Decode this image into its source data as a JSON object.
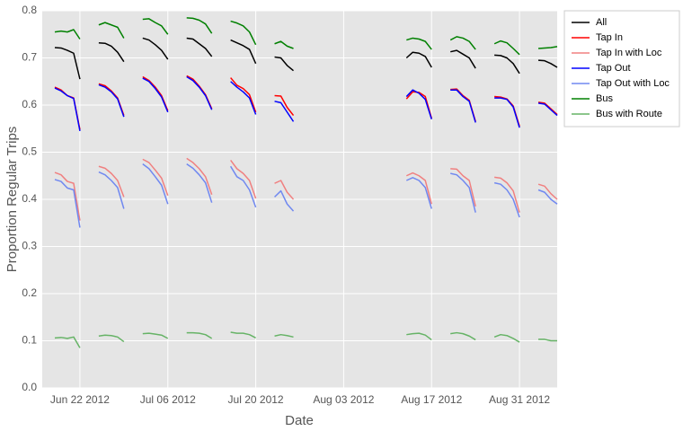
{
  "chart_data": {
    "type": "line",
    "xlabel": "Date",
    "ylabel": "Proportion Regular Trips",
    "x": [
      "2012-06-18",
      "2012-06-19",
      "2012-06-20",
      "2012-06-21",
      "2012-06-22",
      "2012-06-23",
      "2012-06-25",
      "2012-06-26",
      "2012-06-27",
      "2012-06-28",
      "2012-06-29",
      "2012-06-30",
      "2012-07-02",
      "2012-07-03",
      "2012-07-04",
      "2012-07-05",
      "2012-07-06",
      "2012-07-07",
      "2012-07-09",
      "2012-07-10",
      "2012-07-11",
      "2012-07-12",
      "2012-07-13",
      "2012-07-14",
      "2012-07-16",
      "2012-07-17",
      "2012-07-18",
      "2012-07-19",
      "2012-07-20",
      "2012-07-21",
      "2012-07-23",
      "2012-07-24",
      "2012-07-25",
      "2012-07-26",
      "2012-07-27",
      "2012-08-13",
      "2012-08-14",
      "2012-08-15",
      "2012-08-16",
      "2012-08-17",
      "2012-08-18",
      "2012-08-20",
      "2012-08-21",
      "2012-08-22",
      "2012-08-23",
      "2012-08-24",
      "2012-08-25",
      "2012-08-27",
      "2012-08-28",
      "2012-08-29",
      "2012-08-30",
      "2012-08-31",
      "2012-09-01",
      "2012-09-03",
      "2012-09-04",
      "2012-09-05",
      "2012-09-06"
    ],
    "xlim": [
      "2012-06-16",
      "2012-09-06"
    ],
    "xticks": [
      {
        "value": "2012-06-22",
        "label": "Jun 22 2012"
      },
      {
        "value": "2012-07-06",
        "label": "Jul 06 2012"
      },
      {
        "value": "2012-07-20",
        "label": "Jul 20 2012"
      },
      {
        "value": "2012-08-03",
        "label": "Aug 03 2012"
      },
      {
        "value": "2012-08-17",
        "label": "Aug 17 2012"
      },
      {
        "value": "2012-08-31",
        "label": "Aug 31 2012"
      }
    ],
    "ylim": [
      0,
      0.8
    ],
    "yticks": [
      {
        "value": 0,
        "label": "0.0"
      },
      0.1,
      0.2,
      0.3,
      0.4,
      0.5,
      0.6,
      0.7,
      0.8
    ],
    "grid": true,
    "legend": "outside-right-top",
    "series": [
      {
        "name": "All",
        "color": "#000000",
        "values": [
          0.722,
          0.721,
          0.716,
          0.71,
          0.655,
          null,
          0.732,
          0.731,
          0.725,
          0.712,
          0.692,
          null,
          0.742,
          0.738,
          0.728,
          0.716,
          0.697,
          null,
          0.742,
          0.74,
          0.73,
          0.72,
          0.703,
          null,
          0.738,
          0.732,
          0.726,
          0.718,
          0.688,
          null,
          0.702,
          0.7,
          0.684,
          0.673,
          null,
          0.7,
          0.712,
          0.71,
          0.703,
          0.68,
          null,
          0.713,
          0.716,
          0.708,
          0.7,
          0.678,
          null,
          0.706,
          0.705,
          0.7,
          0.688,
          0.667,
          null,
          0.695,
          0.694,
          0.688,
          0.68
        ]
      },
      {
        "name": "Tap In",
        "color": "#ff0000",
        "values": [
          0.638,
          0.632,
          0.62,
          0.615,
          0.548,
          null,
          0.645,
          0.641,
          0.63,
          0.615,
          0.578,
          null,
          0.66,
          0.652,
          0.638,
          0.62,
          0.588,
          null,
          0.662,
          0.655,
          0.64,
          0.622,
          0.592,
          null,
          0.658,
          0.642,
          0.635,
          0.622,
          0.585,
          null,
          0.62,
          0.619,
          0.595,
          0.578,
          null,
          0.613,
          0.628,
          0.627,
          0.618,
          0.572,
          null,
          0.633,
          0.634,
          0.62,
          0.61,
          0.565,
          null,
          0.618,
          0.617,
          0.613,
          0.598,
          0.555,
          null,
          0.606,
          0.604,
          0.592,
          0.58
        ]
      },
      {
        "name": "Tap In with Loc",
        "color": "#f08080",
        "values": [
          0.457,
          0.452,
          0.438,
          0.434,
          0.355,
          null,
          0.47,
          0.466,
          0.455,
          0.44,
          0.405,
          null,
          0.485,
          0.478,
          0.462,
          0.445,
          0.408,
          null,
          0.487,
          0.478,
          0.465,
          0.448,
          0.41,
          null,
          0.483,
          0.465,
          0.455,
          0.44,
          0.402,
          null,
          0.434,
          0.44,
          0.415,
          0.4,
          null,
          0.45,
          0.456,
          0.45,
          0.44,
          0.39,
          null,
          0.465,
          0.464,
          0.45,
          0.44,
          0.385,
          null,
          0.447,
          0.445,
          0.435,
          0.418,
          0.372,
          null,
          0.432,
          0.428,
          0.412,
          0.4
        ]
      },
      {
        "name": "Tap Out",
        "color": "#0000ff",
        "values": [
          0.636,
          0.63,
          0.62,
          0.614,
          0.545,
          null,
          0.643,
          0.638,
          0.628,
          0.613,
          0.575,
          null,
          0.657,
          0.65,
          0.635,
          0.617,
          0.585,
          null,
          0.66,
          0.652,
          0.638,
          0.62,
          0.59,
          null,
          0.65,
          0.638,
          0.628,
          0.615,
          0.58,
          null,
          0.608,
          0.605,
          0.585,
          0.565,
          null,
          0.618,
          0.632,
          0.625,
          0.612,
          0.57,
          null,
          0.632,
          0.632,
          0.618,
          0.608,
          0.563,
          null,
          0.615,
          0.615,
          0.612,
          0.596,
          0.552,
          null,
          0.604,
          0.602,
          0.59,
          0.578
        ]
      },
      {
        "name": "Tap Out with Loc",
        "color": "#7088f0",
        "values": [
          0.442,
          0.438,
          0.424,
          0.42,
          0.34,
          null,
          0.458,
          0.452,
          0.44,
          0.425,
          0.38,
          null,
          0.475,
          0.465,
          0.448,
          0.43,
          0.39,
          null,
          0.475,
          0.466,
          0.452,
          0.435,
          0.393,
          null,
          0.47,
          0.448,
          0.44,
          0.42,
          0.383,
          null,
          0.405,
          0.418,
          0.39,
          0.375,
          null,
          0.44,
          0.446,
          0.44,
          0.425,
          0.38,
          null,
          0.455,
          0.452,
          0.44,
          0.425,
          0.372,
          null,
          0.435,
          0.432,
          0.42,
          0.4,
          0.362,
          null,
          0.42,
          0.415,
          0.4,
          0.39
        ]
      },
      {
        "name": "Bus",
        "color": "#008000",
        "values": [
          0.755,
          0.757,
          0.755,
          0.76,
          0.74,
          null,
          0.77,
          0.775,
          0.77,
          0.765,
          0.742,
          null,
          0.782,
          0.783,
          0.775,
          0.768,
          0.75,
          null,
          0.785,
          0.784,
          0.78,
          0.772,
          0.752,
          null,
          0.778,
          0.774,
          0.768,
          0.755,
          0.728,
          null,
          0.73,
          0.735,
          0.725,
          0.72,
          null,
          0.738,
          0.742,
          0.74,
          0.735,
          0.718,
          null,
          0.738,
          0.745,
          0.742,
          0.735,
          0.718,
          null,
          0.73,
          0.736,
          0.732,
          0.72,
          0.707,
          null,
          0.72,
          0.721,
          0.722,
          0.724
        ]
      },
      {
        "name": "Bus with Route",
        "color": "#66b366",
        "values": [
          0.106,
          0.107,
          0.105,
          0.108,
          0.085,
          null,
          0.11,
          0.112,
          0.111,
          0.108,
          0.098,
          null,
          0.115,
          0.116,
          0.114,
          0.112,
          0.105,
          null,
          0.117,
          0.117,
          0.116,
          0.113,
          0.105,
          null,
          0.118,
          0.116,
          0.116,
          0.113,
          0.106,
          null,
          0.11,
          0.113,
          0.111,
          0.108,
          null,
          0.113,
          0.115,
          0.116,
          0.112,
          0.102,
          null,
          0.115,
          0.117,
          0.115,
          0.11,
          0.102,
          null,
          0.108,
          0.113,
          0.111,
          0.105,
          0.097,
          null,
          0.103,
          0.103,
          0.1,
          0.1
        ]
      }
    ]
  }
}
